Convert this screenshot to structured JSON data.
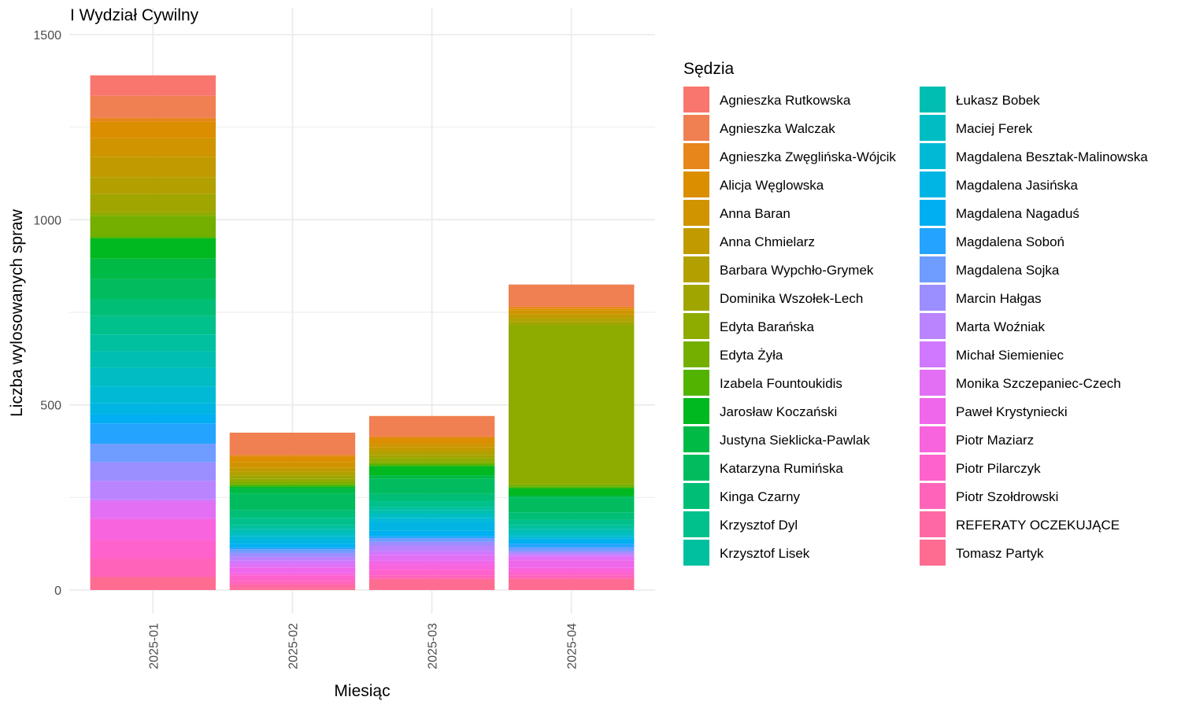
{
  "chart_data": {
    "type": "bar",
    "stacked": true,
    "title": "I Wydział Cywilny",
    "xlabel": "Miesiąc",
    "ylabel": "Liczba wylosowanych spraw",
    "categories": [
      "2025-01",
      "2025-02",
      "2025-03",
      "2025-04"
    ],
    "ylim": [
      0,
      1500
    ],
    "yticks": [
      0,
      500,
      1000,
      1500
    ],
    "grid": true,
    "legend": {
      "title": "Sędzia",
      "position": "right",
      "columns": 2
    },
    "series": [
      {
        "name": "Agnieszka Rutkowska",
        "color": "#F8766D",
        "values": [
          55,
          0,
          0,
          0
        ]
      },
      {
        "name": "Agnieszka Walczak",
        "color": "#F07F51",
        "values": [
          60,
          60,
          55,
          60
        ]
      },
      {
        "name": "Agnieszka Zwęglińska-Wójcik",
        "color": "#E7861B",
        "values": [
          10,
          5,
          5,
          5
        ]
      },
      {
        "name": "Alicja Węglowska",
        "color": "#DB8E00",
        "values": [
          45,
          15,
          15,
          5
        ]
      },
      {
        "name": "Anna Baran",
        "color": "#CF9400",
        "values": [
          50,
          15,
          10,
          10
        ]
      },
      {
        "name": "Anna Chmielarz",
        "color": "#C19A00",
        "values": [
          55,
          10,
          10,
          10
        ]
      },
      {
        "name": "Barbara Wypchło-Grymek",
        "color": "#B2A000",
        "values": [
          45,
          10,
          10,
          10
        ]
      },
      {
        "name": "Dominika Wszołek-Lech",
        "color": "#A1A500",
        "values": [
          50,
          10,
          10,
          10
        ]
      },
      {
        "name": "Edyta Barańska",
        "color": "#8EAB00",
        "values": [
          10,
          10,
          10,
          430
        ]
      },
      {
        "name": "Edyta Żyła",
        "color": "#74AF00",
        "values": [
          55,
          5,
          5,
          5
        ]
      },
      {
        "name": "Izabela Fountoukidis",
        "color": "#52B300",
        "values": [
          5,
          5,
          5,
          5
        ]
      },
      {
        "name": "Jarosław Koczański",
        "color": "#00B81F",
        "values": [
          55,
          5,
          25,
          20
        ]
      },
      {
        "name": "Justyna Sieklicka-Pawlak",
        "color": "#00BA46",
        "values": [
          55,
          15,
          10,
          5
        ]
      },
      {
        "name": "Katarzyna Rumińska",
        "color": "#00BC5F",
        "values": [
          55,
          45,
          40,
          40
        ]
      },
      {
        "name": "Kinga Czarny",
        "color": "#00BE76",
        "values": [
          45,
          20,
          20,
          20
        ]
      },
      {
        "name": "Krzysztof Dyl",
        "color": "#00C08B",
        "values": [
          50,
          20,
          15,
          15
        ]
      },
      {
        "name": "Krzysztof Lisek",
        "color": "#00C09F",
        "values": [
          45,
          10,
          10,
          10
        ]
      },
      {
        "name": "Łukasz Bobek",
        "color": "#00BFB2",
        "values": [
          45,
          10,
          10,
          10
        ]
      },
      {
        "name": "Maciej Ferek",
        "color": "#00BDC4",
        "values": [
          50,
          10,
          10,
          10
        ]
      },
      {
        "name": "Magdalena Besztak-Malinowska",
        "color": "#00BAD5",
        "values": [
          45,
          10,
          10,
          5
        ]
      },
      {
        "name": "Magdalena Jasińska",
        "color": "#00B5E3",
        "values": [
          30,
          10,
          25,
          5
        ]
      },
      {
        "name": "Magdalena Nagaduś",
        "color": "#00AFF1",
        "values": [
          25,
          10,
          15,
          10
        ]
      },
      {
        "name": "Magdalena Soboń",
        "color": "#25A4FF",
        "values": [
          55,
          5,
          5,
          10
        ]
      },
      {
        "name": "Magdalena Sojka",
        "color": "#6F9CFF",
        "values": [
          50,
          10,
          10,
          10
        ]
      },
      {
        "name": "Marcin Hałgas",
        "color": "#9B8EFF",
        "values": [
          50,
          10,
          10,
          5
        ]
      },
      {
        "name": "Marta Woźniak",
        "color": "#BA84FF",
        "values": [
          50,
          10,
          15,
          5
        ]
      },
      {
        "name": "Michał Siemieniec",
        "color": "#D078FF",
        "values": [
          5,
          10,
          10,
          5
        ]
      },
      {
        "name": "Monika Szczepaniec-Czech",
        "color": "#E26FF4",
        "values": [
          45,
          10,
          15,
          10
        ]
      },
      {
        "name": "Paweł Krystyniecki",
        "color": "#EF67EB",
        "values": [
          5,
          15,
          10,
          20
        ]
      },
      {
        "name": "Piotr Maziarz",
        "color": "#F863DE",
        "values": [
          55,
          5,
          15,
          10
        ]
      },
      {
        "name": "Piotr Pilarczyk",
        "color": "#FE62CC",
        "values": [
          50,
          15,
          15,
          10
        ]
      },
      {
        "name": "Piotr Szołdrowski",
        "color": "#FF64BA",
        "values": [
          50,
          10,
          10,
          10
        ]
      },
      {
        "name": "REFERATY OCZEKUJĄCE",
        "color": "#FF69A3",
        "values": [
          0,
          10,
          0,
          0
        ]
      },
      {
        "name": "Tomasz Partyk",
        "color": "#FF6C92",
        "values": [
          35,
          5,
          30,
          30
        ]
      }
    ]
  }
}
